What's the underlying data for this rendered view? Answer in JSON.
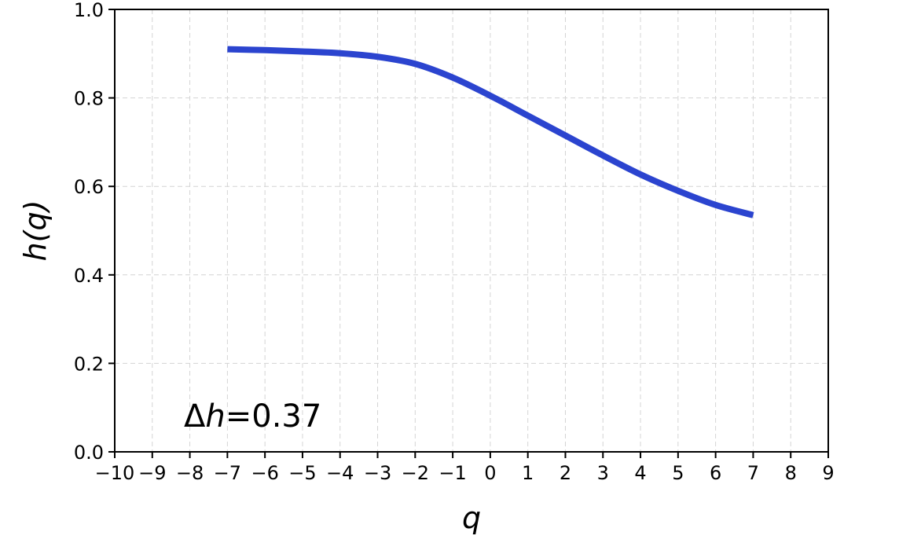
{
  "chart_data": {
    "type": "line",
    "xlabel": "q",
    "ylabel": "h(q)",
    "xlim": [
      -10,
      9
    ],
    "ylim": [
      0.0,
      1.0
    ],
    "x_ticks": [
      -10,
      -9,
      -8,
      -7,
      -6,
      -5,
      -4,
      -3,
      -2,
      -1,
      0,
      1,
      2,
      3,
      4,
      5,
      6,
      7,
      8,
      9
    ],
    "x_tick_labels": [
      "−10",
      "−9",
      "−8",
      "−7",
      "−6",
      "−5",
      "−4",
      "−3",
      "−2",
      "−1",
      "0",
      "1",
      "2",
      "3",
      "4",
      "5",
      "6",
      "7",
      "8",
      "9"
    ],
    "y_ticks": [
      0.0,
      0.2,
      0.4,
      0.6,
      0.8,
      1.0
    ],
    "y_tick_labels": [
      "0.0",
      "0.2",
      "0.4",
      "0.6",
      "0.8",
      "1.0"
    ],
    "grid": true,
    "series": [
      {
        "color": "#2b44cf",
        "x": [
          -7,
          -6,
          -5,
          -4,
          -3,
          -2,
          -1,
          0,
          1,
          2,
          3,
          4,
          5,
          6,
          7
        ],
        "y": [
          0.91,
          0.908,
          0.905,
          0.901,
          0.893,
          0.877,
          0.846,
          0.805,
          0.76,
          0.715,
          0.67,
          0.627,
          0.59,
          0.558,
          0.535
        ]
      }
    ],
    "annotation": {
      "symbol": "Δ",
      "var": "h",
      "rest": "=0.37"
    }
  }
}
